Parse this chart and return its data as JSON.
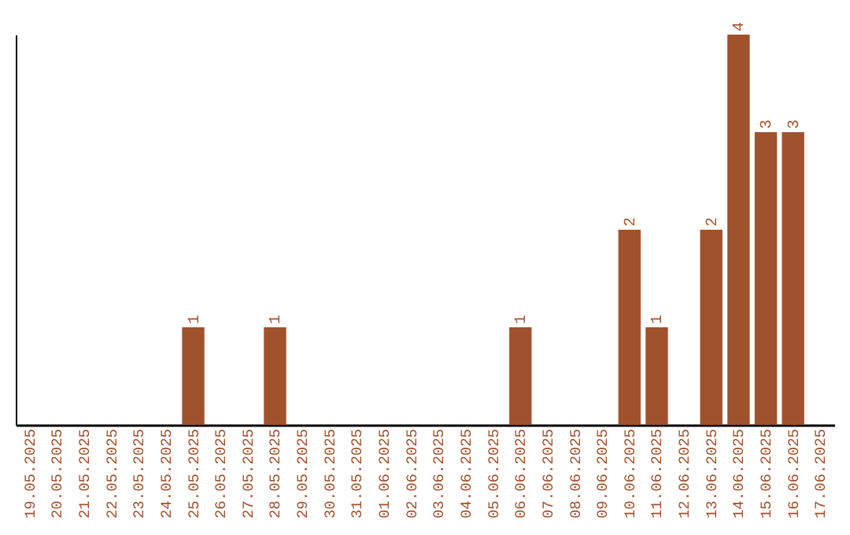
{
  "chart_data": {
    "type": "bar",
    "categories": [
      "19.05.2025",
      "20.05.2025",
      "21.05.2025",
      "22.05.2025",
      "23.05.2025",
      "24.05.2025",
      "25.05.2025",
      "26.05.2025",
      "27.05.2025",
      "28.05.2025",
      "29.05.2025",
      "30.05.2025",
      "31.05.2025",
      "01.06.2025",
      "02.06.2025",
      "03.06.2025",
      "04.06.2025",
      "05.06.2025",
      "06.06.2025",
      "07.06.2025",
      "08.06.2025",
      "09.06.2025",
      "10.06.2025",
      "11.06.2025",
      "12.06.2025",
      "13.06.2025",
      "14.06.2025",
      "15.06.2025",
      "16.06.2025",
      "17.06.2025"
    ],
    "values": [
      0,
      0,
      0,
      0,
      0,
      0,
      1,
      0,
      0,
      1,
      0,
      0,
      0,
      0,
      0,
      0,
      0,
      0,
      1,
      0,
      0,
      0,
      2,
      1,
      0,
      2,
      4,
      3,
      3,
      0
    ],
    "value_labels": [
      null,
      null,
      null,
      null,
      null,
      null,
      "1",
      null,
      null,
      "1",
      null,
      null,
      null,
      null,
      null,
      null,
      null,
      null,
      "1",
      null,
      null,
      null,
      "2",
      "1",
      null,
      "2",
      "4",
      "3",
      "3",
      null
    ],
    "color": "#a0522d",
    "grid": false
  }
}
